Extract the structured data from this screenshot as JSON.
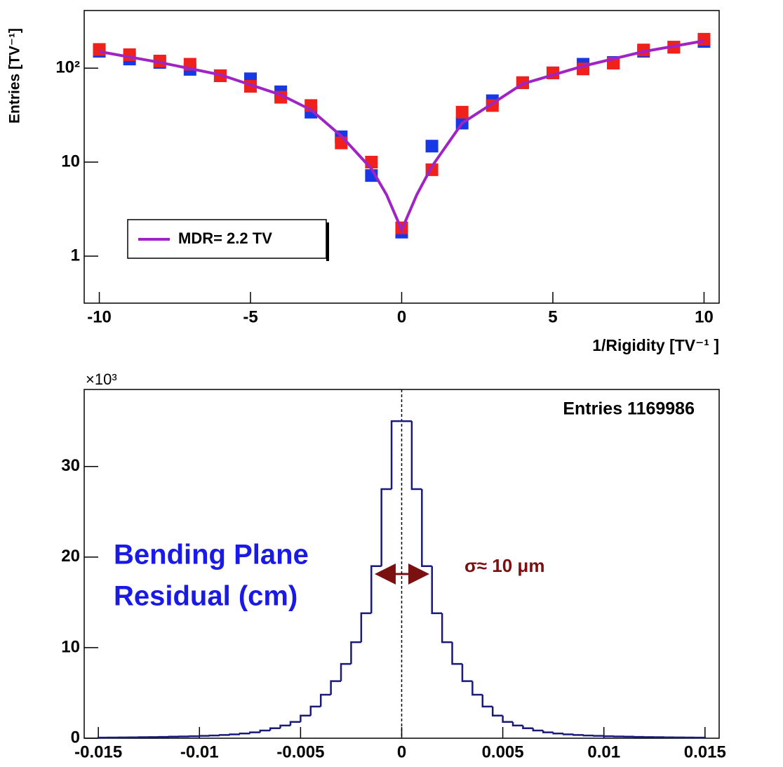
{
  "chart_data": [
    {
      "type": "scatter",
      "ylabel": "Entries [TV⁻¹]",
      "xlabel": "1/Rigidity [TV⁻¹ ]",
      "log_y": true,
      "xlim": [
        -10.5,
        10.5
      ],
      "ylim": [
        0.316,
        410
      ],
      "xticks": [
        -10,
        -5,
        0,
        5,
        10
      ],
      "yticks": [
        1,
        10,
        {
          "value": 100,
          "label": "10²"
        }
      ],
      "legend": "lower left",
      "series": [
        {
          "color": "#1638e6",
          "style": "markers",
          "x": [
            -10,
            -9,
            -8,
            -7,
            -6,
            -5,
            -4,
            -3,
            -2,
            -1,
            0,
            1,
            2,
            3,
            4,
            5,
            6,
            7,
            8,
            9,
            10
          ],
          "values": [
            151,
            125,
            115,
            97,
            83,
            77,
            56,
            34,
            18.6,
            7.2,
            1.8,
            14.8,
            26,
            45,
            70,
            89,
            110,
            115,
            151,
            167,
            192
          ]
        },
        {
          "color": "#f0201a",
          "style": "markers",
          "x": [
            -10,
            -9,
            -8,
            -7,
            -6,
            -5,
            -4,
            -3,
            -2,
            -1,
            0,
            1,
            2,
            3,
            4,
            5,
            6,
            7,
            8,
            9,
            10
          ],
          "values": [
            158,
            139,
            119,
            110,
            83,
            64,
            49,
            40,
            16,
            10,
            2.0,
            8.3,
            34,
            40,
            70,
            89,
            98,
            113,
            156,
            167,
            203
          ]
        },
        {
          "name": "MDR= 2.2 TV",
          "color": "#a024c4",
          "style": "line",
          "x": [
            -10,
            -8,
            -6,
            -4,
            -3,
            -2,
            -1,
            -0.5,
            0,
            0.5,
            1,
            2,
            3,
            4,
            6,
            8,
            10
          ],
          "values": [
            150,
            115,
            85,
            52,
            36,
            19,
            8.5,
            4.5,
            1.9,
            4.5,
            9,
            26,
            42,
            68,
            105,
            150,
            195
          ]
        }
      ]
    },
    {
      "type": "histogram",
      "y_multiplier": "×10³",
      "stats": "Entries 1169986",
      "text_box": [
        "Bending Plane",
        "Residual (cm)"
      ],
      "sigma_label": "σ≈ 10 μm",
      "color": "#1a1a78",
      "vline": 0,
      "xlim": [
        -0.0157,
        0.0157
      ],
      "ylim": [
        0,
        38.5
      ],
      "xticks": [
        -0.015,
        -0.01,
        -0.005,
        0,
        0.005,
        0.01,
        0.015
      ],
      "yticks": [
        0,
        10,
        20,
        30
      ],
      "bins": [
        -0.015,
        -0.0145,
        -0.014,
        -0.0135,
        -0.013,
        -0.0125,
        -0.012,
        -0.0115,
        -0.011,
        -0.0105,
        -0.01,
        -0.0095,
        -0.009,
        -0.0085,
        -0.008,
        -0.0075,
        -0.007,
        -0.0065,
        -0.006,
        -0.0055,
        -0.005,
        -0.0045,
        -0.004,
        -0.0035,
        -0.003,
        -0.0025,
        -0.002,
        -0.0015,
        -0.001,
        -0.0005,
        0,
        0.0005,
        0.001,
        0.0015,
        0.002,
        0.0025,
        0.003,
        0.0035,
        0.004,
        0.0045,
        0.005,
        0.0055,
        0.006,
        0.0065,
        0.007,
        0.0075,
        0.008,
        0.0085,
        0.009,
        0.0095,
        0.01,
        0.0105,
        0.011,
        0.0115,
        0.012,
        0.0125,
        0.013,
        0.0135,
        0.014,
        0.0145,
        0.015
      ],
      "counts": [
        0.07,
        0.08,
        0.09,
        0.1,
        0.12,
        0.13,
        0.15,
        0.17,
        0.19,
        0.22,
        0.26,
        0.3,
        0.36,
        0.43,
        0.52,
        0.65,
        0.85,
        1.1,
        1.4,
        1.8,
        2.5,
        3.5,
        4.8,
        6.3,
        8.2,
        10.6,
        13.8,
        19,
        27.5,
        35,
        35,
        27.5,
        19,
        13.8,
        10.6,
        8.2,
        6.3,
        4.8,
        3.5,
        2.5,
        1.8,
        1.4,
        1.1,
        0.85,
        0.65,
        0.52,
        0.43,
        0.36,
        0.3,
        0.26,
        0.22,
        0.19,
        0.17,
        0.15,
        0.13,
        0.12,
        0.1,
        0.09,
        0.08,
        0.07
      ]
    }
  ]
}
